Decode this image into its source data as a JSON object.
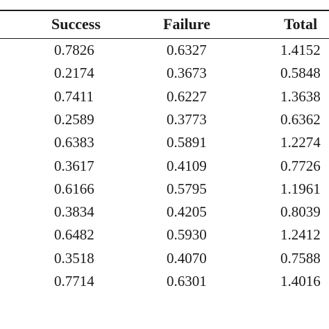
{
  "table": {
    "headers": [
      "Success",
      "Failure",
      "Total"
    ],
    "rows": [
      [
        "0.7826",
        "0.6327",
        "1.4152"
      ],
      [
        "0.2174",
        "0.3673",
        "0.5848"
      ],
      [
        "0.7411",
        "0.6227",
        "1.3638"
      ],
      [
        "0.2589",
        "0.3773",
        "0.6362"
      ],
      [
        "0.6383",
        "0.5891",
        "1.2274"
      ],
      [
        "0.3617",
        "0.4109",
        "0.7726"
      ],
      [
        "0.6166",
        "0.5795",
        "1.1961"
      ],
      [
        "0.3834",
        "0.4205",
        "0.8039"
      ],
      [
        "0.6482",
        "0.5930",
        "1.2412"
      ],
      [
        "0.3518",
        "0.4070",
        "0.7588"
      ],
      [
        "0.7714",
        "0.6301",
        "1.4016"
      ]
    ]
  }
}
